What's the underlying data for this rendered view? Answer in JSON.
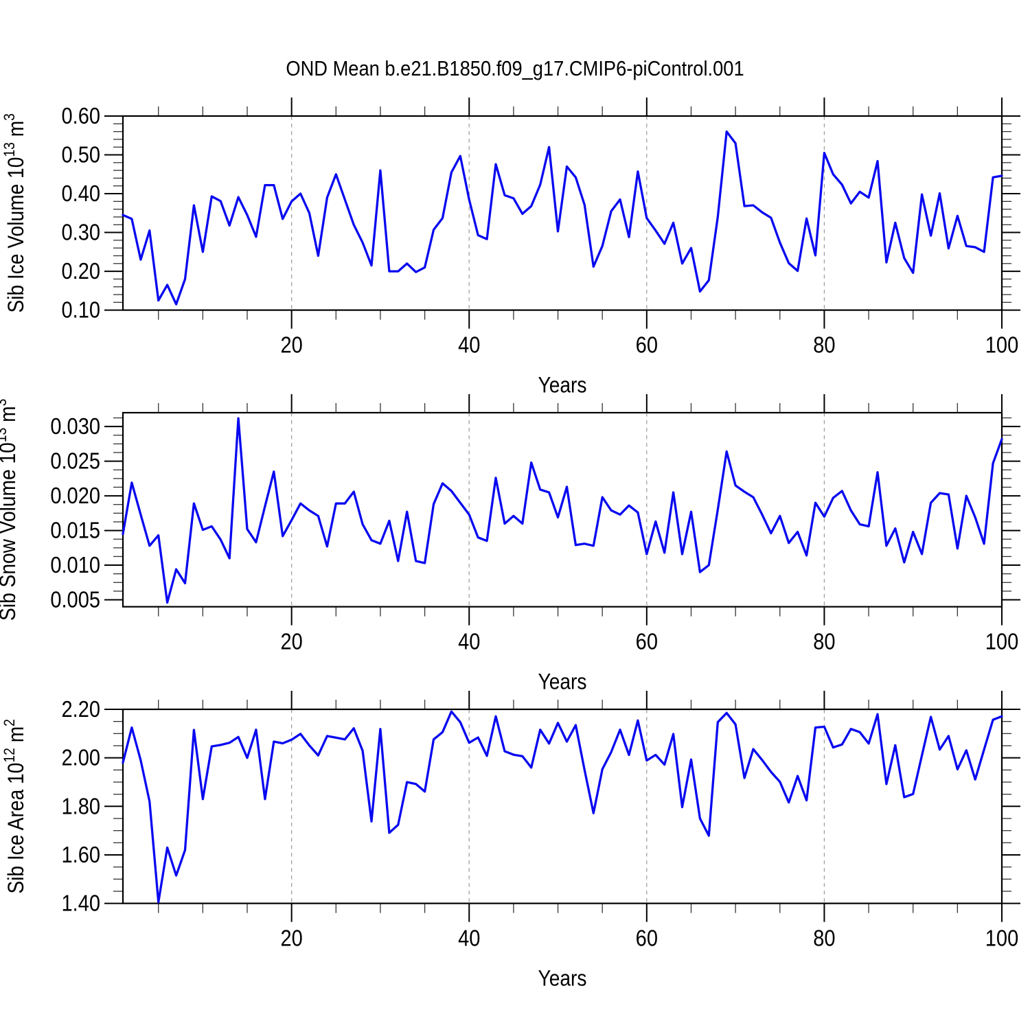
{
  "title": "OND Mean b.e21.B1850.f09_g17.CMIP6-piControl.001",
  "style": {
    "line_color": "#0808f0",
    "grid_color": "#999999",
    "axis_color": "#000000",
    "background": "#ffffff"
  },
  "chart_data": [
    {
      "type": "line",
      "id": "ice-volume",
      "ylabel": "Sib Ice Volume 10^13 m^3",
      "ylabel_parts": [
        {
          "t": "Sib Ice Volume 10"
        },
        {
          "sup": "13"
        },
        {
          "t": " m"
        },
        {
          "sup": "3"
        }
      ],
      "xlabel": "Years",
      "xlim": [
        1,
        100
      ],
      "ylim": [
        0.1,
        0.6
      ],
      "x_major": [
        20,
        40,
        60,
        80,
        100
      ],
      "x_tick_labels": [
        "20",
        "40",
        "60",
        "80",
        "100"
      ],
      "x_grid": [
        20,
        40,
        60,
        80
      ],
      "x_minor_step": 5,
      "y_tick_values": [
        0.1,
        0.2,
        0.3,
        0.4,
        0.5,
        0.6
      ],
      "y_tick_labels": [
        "0.10",
        "0.20",
        "0.30",
        "0.40",
        "0.50",
        "0.60"
      ],
      "y_minor_step": 0.02,
      "x_start": 1,
      "values": [
        0.345,
        0.335,
        0.23,
        0.305,
        0.125,
        0.165,
        0.115,
        0.18,
        0.37,
        0.25,
        0.393,
        0.381,
        0.318,
        0.391,
        0.345,
        0.289,
        0.422,
        0.422,
        0.335,
        0.38,
        0.4,
        0.35,
        0.24,
        0.39,
        0.45,
        0.385,
        0.32,
        0.274,
        0.215,
        0.46,
        0.2,
        0.2,
        0.22,
        0.198,
        0.21,
        0.307,
        0.337,
        0.455,
        0.497,
        0.385,
        0.293,
        0.283,
        0.476,
        0.396,
        0.388,
        0.348,
        0.368,
        0.423,
        0.52,
        0.303,
        0.47,
        0.442,
        0.371,
        0.212,
        0.265,
        0.355,
        0.385,
        0.288,
        0.457,
        0.337,
        0.305,
        0.271,
        0.325,
        0.22,
        0.26,
        0.148,
        0.177,
        0.34,
        0.56,
        0.53,
        0.368,
        0.37,
        0.352,
        0.338,
        0.274,
        0.221,
        0.201,
        0.336,
        0.241,
        0.505,
        0.45,
        0.423,
        0.375,
        0.405,
        0.39,
        0.484,
        0.223,
        0.325,
        0.234,
        0.196,
        0.398,
        0.292,
        0.401,
        0.259,
        0.343,
        0.265,
        0.262,
        0.25,
        0.442,
        0.446
      ]
    },
    {
      "type": "line",
      "id": "snow-volume",
      "ylabel": "Sib Snow Volume 10^13 m^3",
      "ylabel_parts": [
        {
          "t": "Sib Snow Volume 10"
        },
        {
          "sup": "13"
        },
        {
          "t": " m"
        },
        {
          "sup": "3"
        }
      ],
      "xlabel": "Years",
      "xlim": [
        1,
        100
      ],
      "ylim": [
        0.004,
        0.032
      ],
      "x_major": [
        20,
        40,
        60,
        80,
        100
      ],
      "x_tick_labels": [
        "20",
        "40",
        "60",
        "80",
        "100"
      ],
      "x_grid": [
        20,
        40,
        60,
        80
      ],
      "x_minor_step": 5,
      "y_tick_values": [
        0.005,
        0.01,
        0.015,
        0.02,
        0.025,
        0.03
      ],
      "y_tick_labels": [
        "0.005",
        "0.010",
        "0.015",
        "0.020",
        "0.025",
        "0.030"
      ],
      "y_minor_step": 0.00125,
      "x_start": 1,
      "values": [
        0.0145,
        0.0219,
        0.0173,
        0.0128,
        0.0143,
        0.0046,
        0.0094,
        0.0074,
        0.0189,
        0.0151,
        0.0156,
        0.0137,
        0.011,
        0.0312,
        0.0152,
        0.0133,
        0.0185,
        0.0235,
        0.0142,
        0.0165,
        0.0189,
        0.0179,
        0.0171,
        0.0127,
        0.0189,
        0.0189,
        0.0206,
        0.0159,
        0.0136,
        0.0131,
        0.0164,
        0.0106,
        0.0177,
        0.0106,
        0.0103,
        0.0188,
        0.0218,
        0.0207,
        0.019,
        0.0173,
        0.014,
        0.0135,
        0.0226,
        0.016,
        0.0171,
        0.016,
        0.0248,
        0.0209,
        0.0205,
        0.0169,
        0.0213,
        0.0129,
        0.0131,
        0.0128,
        0.0198,
        0.0179,
        0.0173,
        0.0186,
        0.0176,
        0.0116,
        0.0163,
        0.0118,
        0.0205,
        0.0116,
        0.0177,
        0.009,
        0.01,
        0.018,
        0.0264,
        0.0215,
        0.0206,
        0.0198,
        0.0173,
        0.0146,
        0.0171,
        0.0132,
        0.0148,
        0.0114,
        0.019,
        0.017,
        0.0197,
        0.0207,
        0.0179,
        0.0159,
        0.0156,
        0.0234,
        0.0128,
        0.0153,
        0.0104,
        0.0148,
        0.0116,
        0.019,
        0.0204,
        0.0202,
        0.0124,
        0.02,
        0.0169,
        0.0131,
        0.0247,
        0.0282
      ]
    },
    {
      "type": "line",
      "id": "ice-area",
      "ylabel": "Sib Ice Area 10^12 m^2",
      "ylabel_parts": [
        {
          "t": "Sib Ice Area 10"
        },
        {
          "sup": "12"
        },
        {
          "t": " m"
        },
        {
          "sup": "2"
        }
      ],
      "xlabel": "Years",
      "xlim": [
        1,
        100
      ],
      "ylim": [
        1.4,
        2.2
      ],
      "x_major": [
        20,
        40,
        60,
        80,
        100
      ],
      "x_tick_labels": [
        "20",
        "40",
        "60",
        "80",
        "100"
      ],
      "x_grid": [
        20,
        40,
        60,
        80
      ],
      "x_minor_step": 5,
      "y_tick_values": [
        1.4,
        1.6,
        1.8,
        2.0,
        2.2
      ],
      "y_tick_labels": [
        "1.40",
        "1.60",
        "1.80",
        "2.00",
        "2.20"
      ],
      "y_minor_step": 0.05,
      "x_start": 1,
      "values": [
        1.98,
        2.125,
        1.99,
        1.82,
        1.405,
        1.63,
        1.515,
        1.62,
        2.115,
        1.83,
        2.047,
        2.053,
        2.062,
        2.086,
        2.0,
        2.116,
        1.83,
        2.067,
        2.06,
        2.075,
        2.099,
        2.051,
        2.01,
        2.09,
        2.083,
        2.076,
        2.122,
        2.029,
        1.738,
        2.119,
        1.691,
        1.724,
        1.9,
        1.892,
        1.861,
        2.076,
        2.106,
        2.191,
        2.147,
        2.062,
        2.084,
        2.008,
        2.171,
        2.027,
        2.013,
        2.007,
        1.96,
        2.116,
        2.059,
        2.144,
        2.067,
        2.135,
        1.95,
        1.772,
        1.953,
        2.024,
        2.116,
        2.012,
        2.154,
        1.989,
        2.012,
        1.972,
        2.098,
        1.797,
        1.993,
        1.75,
        1.679,
        2.147,
        2.185,
        2.138,
        1.917,
        2.036,
        1.991,
        1.942,
        1.901,
        1.816,
        1.925,
        1.825,
        2.125,
        2.128,
        2.043,
        2.055,
        2.119,
        2.106,
        2.059,
        2.18,
        1.892,
        2.052,
        1.838,
        1.851,
        2.01,
        2.169,
        2.034,
        2.09,
        1.953,
        2.031,
        1.911,
        2.034,
        2.157,
        2.171
      ]
    }
  ]
}
